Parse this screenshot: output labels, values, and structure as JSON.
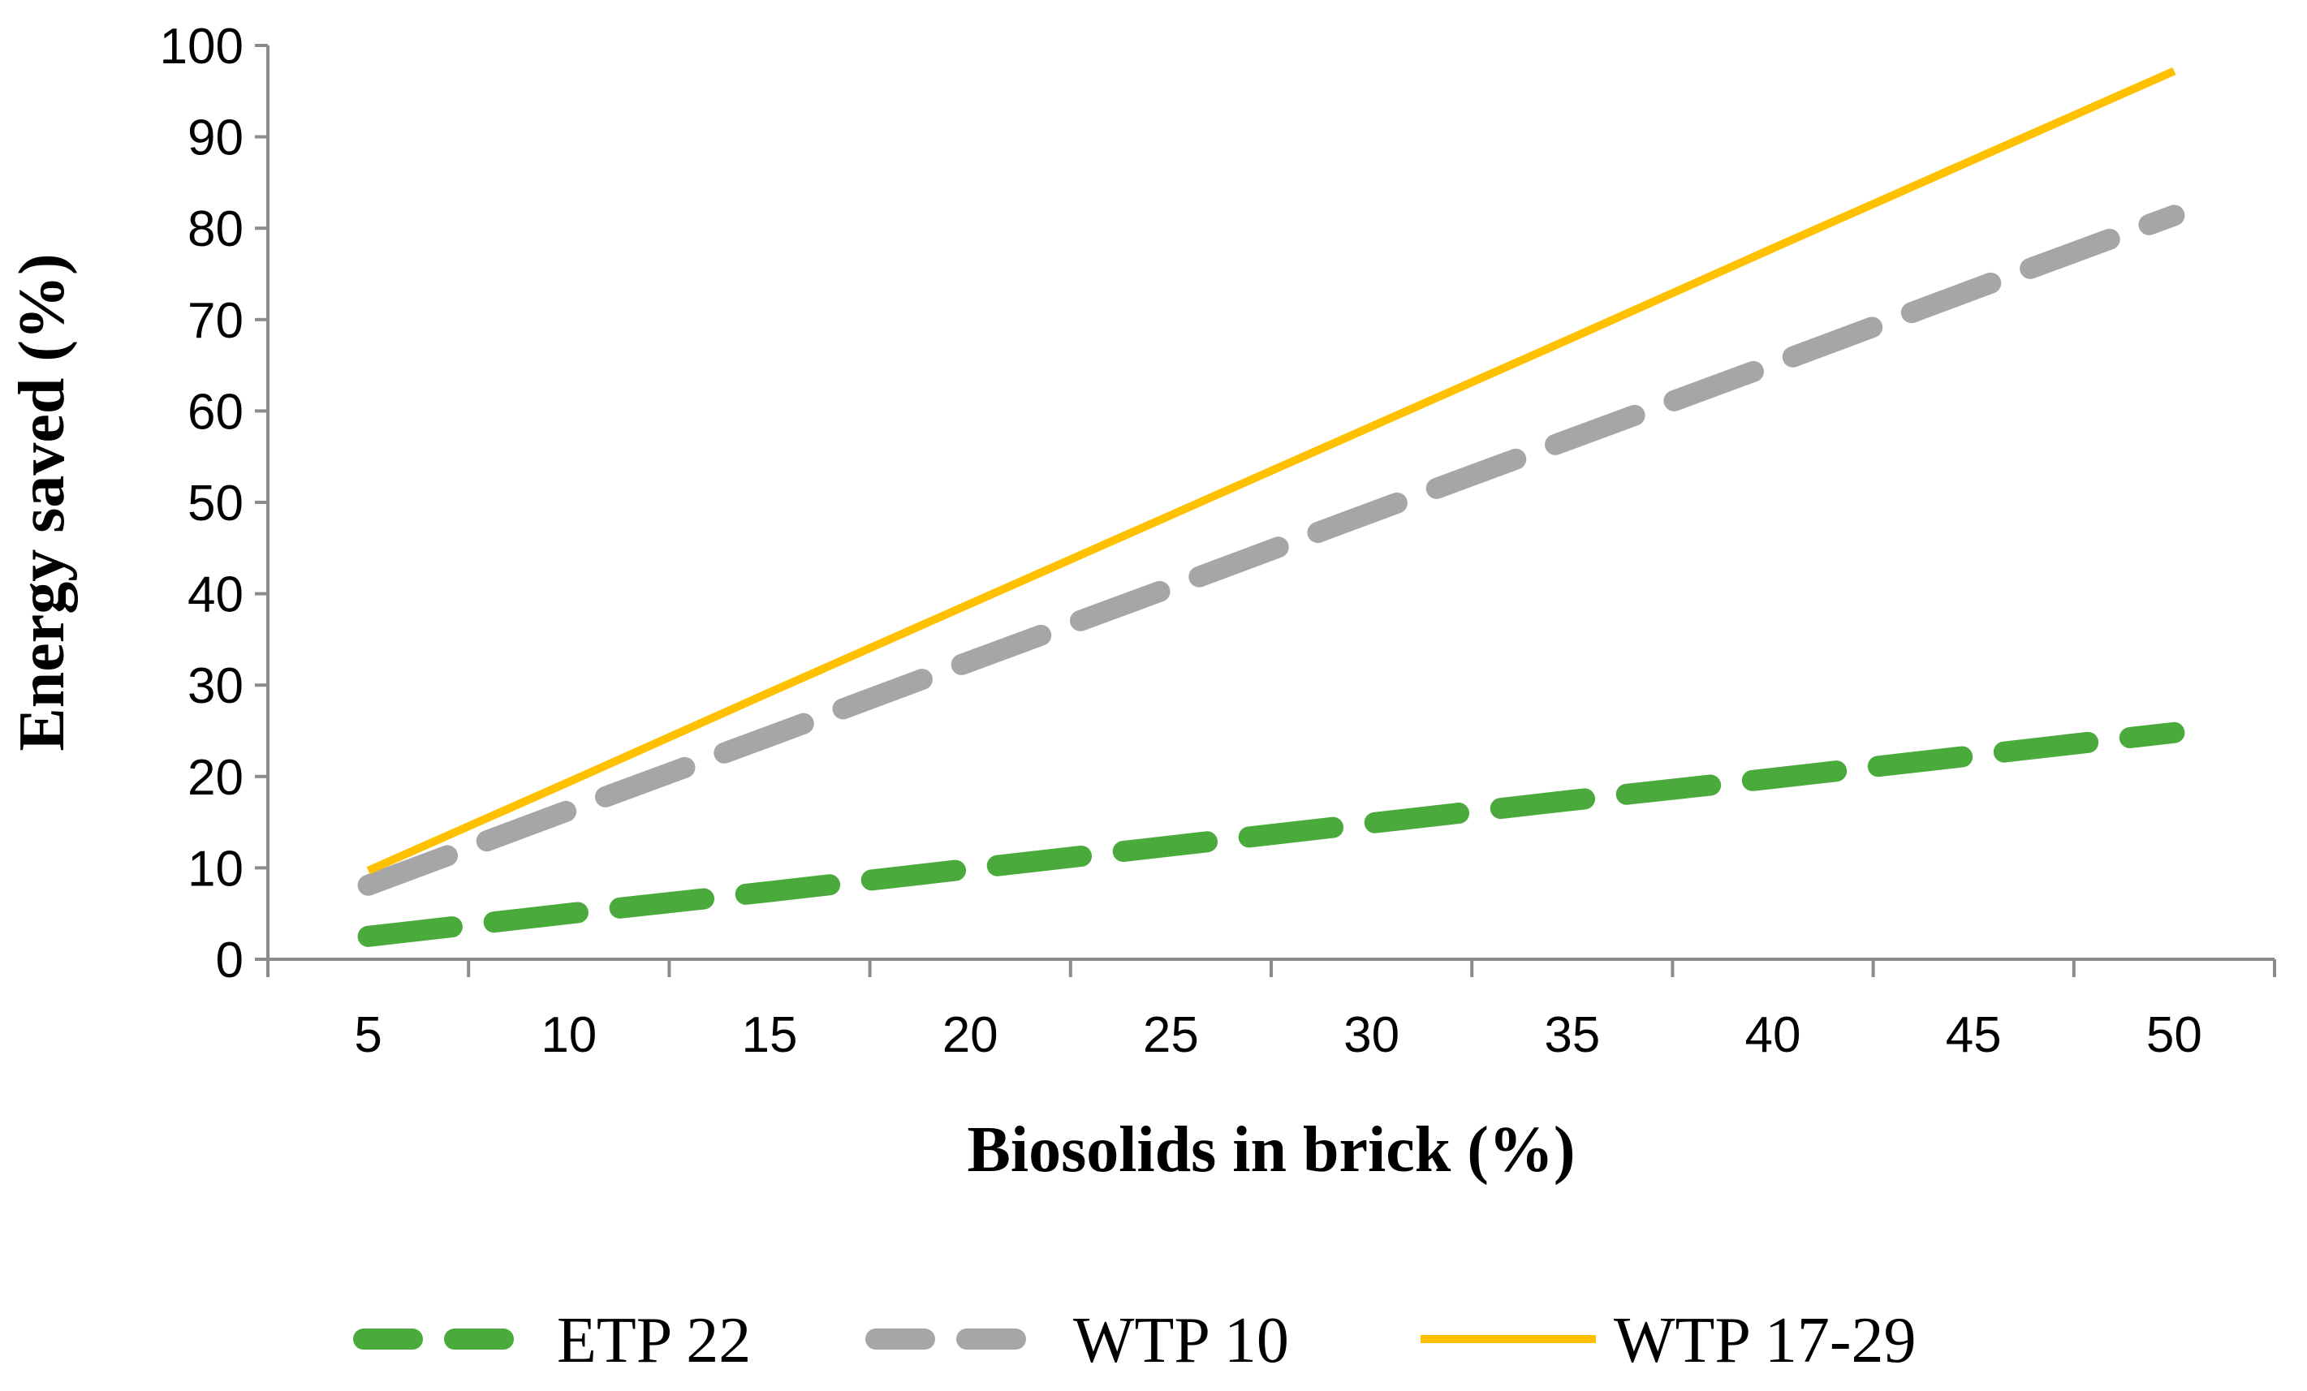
{
  "chart_data": {
    "type": "line",
    "title": "",
    "xlabel": "Biosolids in brick (%)",
    "ylabel": "Energy saved (%)",
    "categories": [
      "5",
      "10",
      "15",
      "20",
      "25",
      "30",
      "35",
      "40",
      "45",
      "50"
    ],
    "x": [
      5,
      10,
      15,
      20,
      25,
      30,
      35,
      40,
      45,
      50
    ],
    "ylim": [
      0,
      100
    ],
    "yticks": [
      "0",
      "10",
      "20",
      "30",
      "40",
      "50",
      "60",
      "70",
      "80",
      "90",
      "100"
    ],
    "grid": false,
    "legend_position": "bottom",
    "series": [
      {
        "name": "ETP 22",
        "style": "dashed",
        "color": "#4aaa3c",
        "values": [
          2.5,
          5.0,
          7.4,
          9.9,
          12.4,
          14.9,
          17.4,
          19.8,
          22.3,
          24.8
        ]
      },
      {
        "name": "WTP 10",
        "style": "dashed",
        "color": "#a6a6a6",
        "values": [
          8.1,
          16.3,
          24.4,
          32.6,
          40.7,
          48.9,
          57.0,
          65.1,
          73.3,
          81.4
        ]
      },
      {
        "name": "WTP 17-29",
        "style": "solid",
        "color": "#ffc000",
        "values": [
          9.7,
          19.4,
          29.2,
          38.9,
          48.6,
          58.3,
          68.0,
          77.8,
          87.5,
          97.2
        ]
      }
    ]
  }
}
